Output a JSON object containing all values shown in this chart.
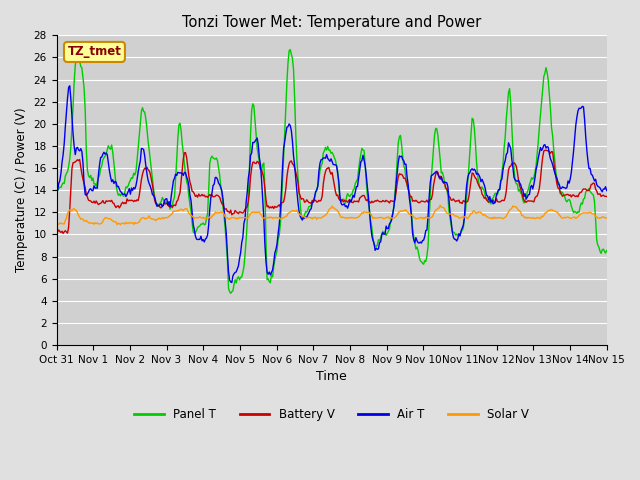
{
  "title": "Tonzi Tower Met: Temperature and Power",
  "xlabel": "Time",
  "ylabel": "Temperature (C) / Power (V)",
  "ylim": [
    0,
    28
  ],
  "yticks": [
    0,
    2,
    4,
    6,
    8,
    10,
    12,
    14,
    16,
    18,
    20,
    22,
    24,
    26,
    28
  ],
  "xtick_labels": [
    "Oct 31",
    "Nov 1",
    "Nov 2",
    "Nov 3",
    "Nov 4",
    "Nov 5",
    "Nov 6",
    "Nov 7",
    "Nov 8",
    "Nov 9",
    "Nov 10",
    "Nov 11",
    "Nov 12",
    "Nov 13",
    "Nov 14",
    "Nov 15"
  ],
  "x_days": [
    0,
    1,
    2,
    3,
    4,
    5,
    6,
    7,
    8,
    9,
    10,
    11,
    12,
    13,
    14,
    15
  ],
  "colors": {
    "panel_t": "#00cc00",
    "battery_v": "#cc0000",
    "air_t": "#0000ee",
    "solar_v": "#ff9900"
  },
  "fig_bg": "#e0e0e0",
  "plot_bg": "#d0d0d0",
  "grid_color": "#ffffff",
  "annotation_text": "TZ_tmet",
  "annotation_bg": "#ffff99",
  "annotation_border": "#cc8800",
  "annotation_text_color": "#880000",
  "legend_labels": [
    "Panel T",
    "Battery V",
    "Air T",
    "Solar V"
  ]
}
